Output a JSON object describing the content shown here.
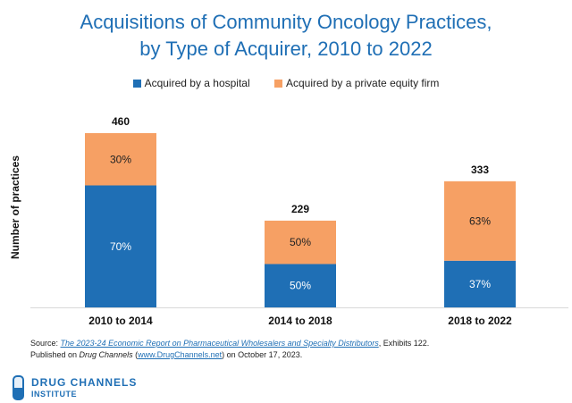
{
  "title_line1": "Acquisitions of Community Oncology Practices,",
  "title_line2": "by Type of Acquirer, 2010 to 2022",
  "colors": {
    "hospital": "#1f6fb5",
    "private_equity": "#f6a064",
    "title": "#1f6fb5",
    "axis": "#d9d9d9"
  },
  "chart_data": {
    "type": "bar",
    "stacked": true,
    "title": "Acquisitions of Community Oncology Practices, by Type of Acquirer, 2010 to 2022",
    "xlabel": "",
    "ylabel": "Number of practices",
    "categories": [
      "2010 to 2014",
      "2014 to 2018",
      "2018 to 2022"
    ],
    "totals": [
      460,
      229,
      333
    ],
    "series": [
      {
        "name": "Acquired by a hospital",
        "share_labels": [
          "70%",
          "50%",
          "37%"
        ],
        "shares": [
          0.7,
          0.5,
          0.37
        ]
      },
      {
        "name": "Acquired by a private equity firm",
        "share_labels": [
          "30%",
          "50%",
          "63%"
        ],
        "shares": [
          0.3,
          0.5,
          0.63
        ]
      }
    ],
    "ylim": [
      0,
      460
    ],
    "grid": false,
    "legend": "top-center"
  },
  "source": {
    "prefix": "Source: ",
    "link_text": "The 2023-24 Economic Report on Pharmaceutical Wholesalers and Specialty Distributors",
    "suffix": ", Exhibits 122.",
    "line2_a": "Published on ",
    "line2_italic": "Drug Channels",
    "line2_b": " (",
    "line2_link": "www.DrugChannels.net",
    "line2_c": ") on October 17, 2023."
  },
  "logo": {
    "line1": "DRUG CHANNELS",
    "line2": "INSTITUTE"
  }
}
